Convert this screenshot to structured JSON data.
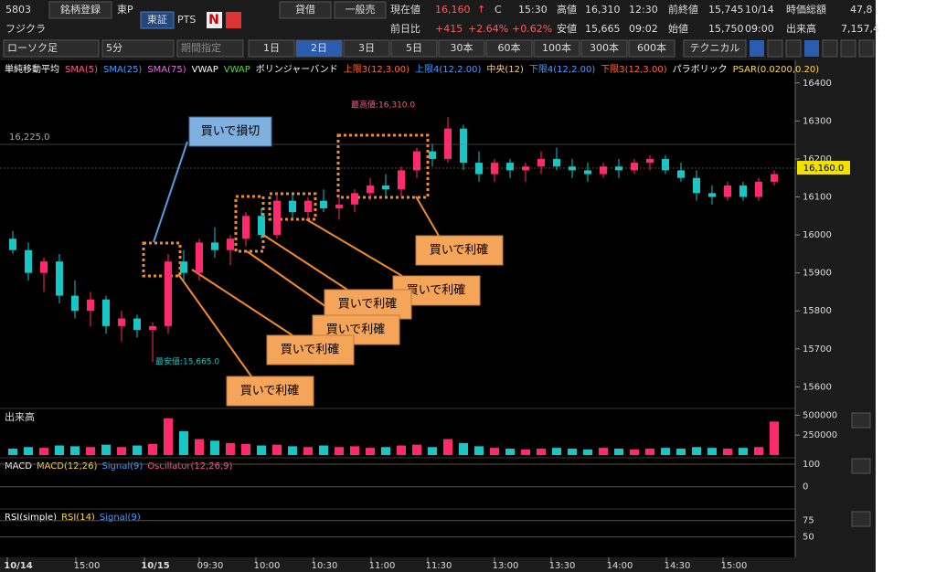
{
  "header": {
    "code": "5803",
    "register": "銘柄登録",
    "market": "東P",
    "name": "フジクラ",
    "exchange": "東証",
    "pts": "PTS",
    "news": "N",
    "margin": "貸借",
    "general": "一般売",
    "price_label": "現在値",
    "price": "16,160",
    "arrow": "↑",
    "c": "C",
    "time": "15:30",
    "change_label": "前日比",
    "change": "+415",
    "change_pct": "+2.64%",
    "change_pct2": "+0.62%",
    "high_label": "高値",
    "high": "16,310",
    "high_time": "12:30",
    "low_label": "安値",
    "low": "15,665",
    "low_time": "09:02",
    "prev_label": "前終値",
    "prev": "15,745",
    "prev_date": "10/14",
    "open_label": "始値",
    "open": "15,750",
    "open_time": "09:00",
    "cap_label": "時価総額",
    "cap": "47,8",
    "vol_label": "出来高",
    "vol": "7,157,4"
  },
  "toolbar": {
    "chart_type": "ローソク足",
    "interval": "5分",
    "period": "期間指定",
    "ranges": [
      "1日",
      "2日",
      "3日",
      "5日",
      "30本",
      "60本",
      "100本",
      "300本",
      "600本"
    ],
    "selected": 1,
    "technical": "テクニカル"
  },
  "legend": [
    {
      "text": "単純移動平均",
      "color": "#ffffff"
    },
    {
      "text": "SMA(5)",
      "color": "#ff5a8c"
    },
    {
      "text": "SMA(25)",
      "color": "#4a9cff"
    },
    {
      "text": "SMA(75)",
      "color": "#e070e0"
    },
    {
      "text": "VWAP",
      "color": "#ffffff"
    },
    {
      "text": "VWAP",
      "color": "#55dd33"
    },
    {
      "text": "ボリンジャーバンド",
      "color": "#ffffff"
    },
    {
      "text": "上限3(12,3.00)",
      "color": "#ff6a3a"
    },
    {
      "text": "上限4(12,2.00)",
      "color": "#4a9cff"
    },
    {
      "text": "中央(12)",
      "color": "#ffcc66"
    },
    {
      "text": "下限4(12,2.00)",
      "color": "#4a9cff"
    },
    {
      "text": "下限3(12,3.00)",
      "color": "#ff6a3a"
    },
    {
      "text": "パラボリック",
      "color": "#ffffff"
    },
    {
      "text": "PSAR(0.0200,0.20)",
      "color": "#ffdd44"
    }
  ],
  "annotations": {
    "stop": "買いで損切",
    "profits": [
      "買いで利確",
      "買いで利確",
      "買いで利確",
      "買いで利確",
      "買いで利確",
      "買いで利確"
    ],
    "high_mark": "最高値:16,310.0",
    "low_mark": "最安値:15,665.0",
    "ref_price": "16,225.0",
    "last_price": "16,160.0"
  },
  "price_chart": {
    "ylim": [
      15560,
      16450
    ],
    "yticks": [
      15600,
      15700,
      15800,
      15900,
      16000,
      16100,
      16200,
      16300,
      16400
    ],
    "up_color": "#ff2a6d",
    "down_color": "#19c6c6",
    "ohlc": [
      [
        15990,
        16010,
        15950,
        15960
      ],
      [
        15960,
        15980,
        15880,
        15900
      ],
      [
        15900,
        15940,
        15850,
        15930
      ],
      [
        15930,
        15950,
        15820,
        15840
      ],
      [
        15840,
        15880,
        15780,
        15800
      ],
      [
        15800,
        15850,
        15760,
        15830
      ],
      [
        15830,
        15840,
        15740,
        15760
      ],
      [
        15760,
        15800,
        15720,
        15780
      ],
      [
        15780,
        15790,
        15730,
        15750
      ],
      [
        15750,
        15770,
        15665,
        15760
      ],
      [
        15760,
        15950,
        15740,
        15930
      ],
      [
        15930,
        15960,
        15880,
        15900
      ],
      [
        15900,
        15990,
        15880,
        15980
      ],
      [
        15980,
        16020,
        15940,
        15960
      ],
      [
        15960,
        16000,
        15920,
        15990
      ],
      [
        15990,
        16060,
        15970,
        16050
      ],
      [
        16050,
        16070,
        15990,
        16000
      ],
      [
        16000,
        16110,
        15990,
        16090
      ],
      [
        16090,
        16110,
        16040,
        16060
      ],
      [
        16060,
        16100,
        16040,
        16090
      ],
      [
        16090,
        16120,
        16060,
        16070
      ],
      [
        16070,
        16100,
        16040,
        16080
      ],
      [
        16080,
        16120,
        16060,
        16110
      ],
      [
        16110,
        16150,
        16090,
        16130
      ],
      [
        16130,
        16160,
        16100,
        16120
      ],
      [
        16120,
        16180,
        16100,
        16170
      ],
      [
        16170,
        16230,
        16150,
        16220
      ],
      [
        16220,
        16240,
        16180,
        16200
      ],
      [
        16200,
        16310,
        16190,
        16280
      ],
      [
        16280,
        16290,
        16170,
        16190
      ],
      [
        16190,
        16220,
        16140,
        16160
      ],
      [
        16160,
        16200,
        16140,
        16190
      ],
      [
        16190,
        16200,
        16150,
        16170
      ],
      [
        16170,
        16190,
        16140,
        16180
      ],
      [
        16180,
        16220,
        16160,
        16200
      ],
      [
        16200,
        16230,
        16170,
        16180
      ],
      [
        16180,
        16200,
        16150,
        16170
      ],
      [
        16170,
        16190,
        16140,
        16160
      ],
      [
        16160,
        16190,
        16150,
        16180
      ],
      [
        16180,
        16200,
        16150,
        16170
      ],
      [
        16170,
        16200,
        16160,
        16190
      ],
      [
        16190,
        16210,
        16170,
        16200
      ],
      [
        16200,
        16210,
        16160,
        16170
      ],
      [
        16170,
        16190,
        16140,
        16150
      ],
      [
        16150,
        16170,
        16090,
        16110
      ],
      [
        16110,
        16130,
        16080,
        16100
      ],
      [
        16100,
        16140,
        16090,
        16130
      ],
      [
        16130,
        16140,
        16090,
        16100
      ],
      [
        16100,
        16150,
        16090,
        16140
      ],
      [
        16140,
        16170,
        16130,
        16160
      ]
    ]
  },
  "volume": {
    "title": "出来高",
    "ylim": [
      0,
      550000
    ],
    "yticks": [
      250000,
      500000
    ],
    "values": [
      80000,
      100000,
      90000,
      120000,
      110000,
      100000,
      130000,
      100000,
      120000,
      140000,
      460000,
      300000,
      200000,
      180000,
      150000,
      140000,
      120000,
      130000,
      110000,
      100000,
      120000,
      100000,
      110000,
      90000,
      100000,
      120000,
      130000,
      100000,
      200000,
      150000,
      110000,
      90000,
      80000,
      70000,
      80000,
      90000,
      80000,
      70000,
      90000,
      80000,
      70000,
      80000,
      90000,
      80000,
      100000,
      90000,
      80000,
      90000,
      100000,
      420000
    ]
  },
  "macd": {
    "labels": [
      {
        "text": "MACD",
        "color": "#ffffff"
      },
      {
        "text": "MACD(12,26)",
        "color": "#ffdd44"
      },
      {
        "text": "Signal(9)",
        "color": "#4a9cff"
      },
      {
        "text": "Oscillator(12,26,9)",
        "color": "#ff5a8c"
      }
    ],
    "ylim": [
      -90,
      120
    ],
    "yticks": [
      0,
      100
    ]
  },
  "rsi": {
    "labels": [
      {
        "text": "RSI(simple)",
        "color": "#ffffff"
      },
      {
        "text": "RSI(14)",
        "color": "#ffdd44"
      },
      {
        "text": "Signal(9)",
        "color": "#4a9cff"
      }
    ],
    "ylim": [
      20,
      90
    ],
    "yticks": [
      50,
      75
    ]
  },
  "time_axis": [
    "10/14",
    "15:00",
    "10/15",
    "09:30",
    "10:00",
    "10:30",
    "11:00",
    "11:30",
    "13:00",
    "13:30",
    "14:00",
    "14:30",
    "15:00"
  ]
}
